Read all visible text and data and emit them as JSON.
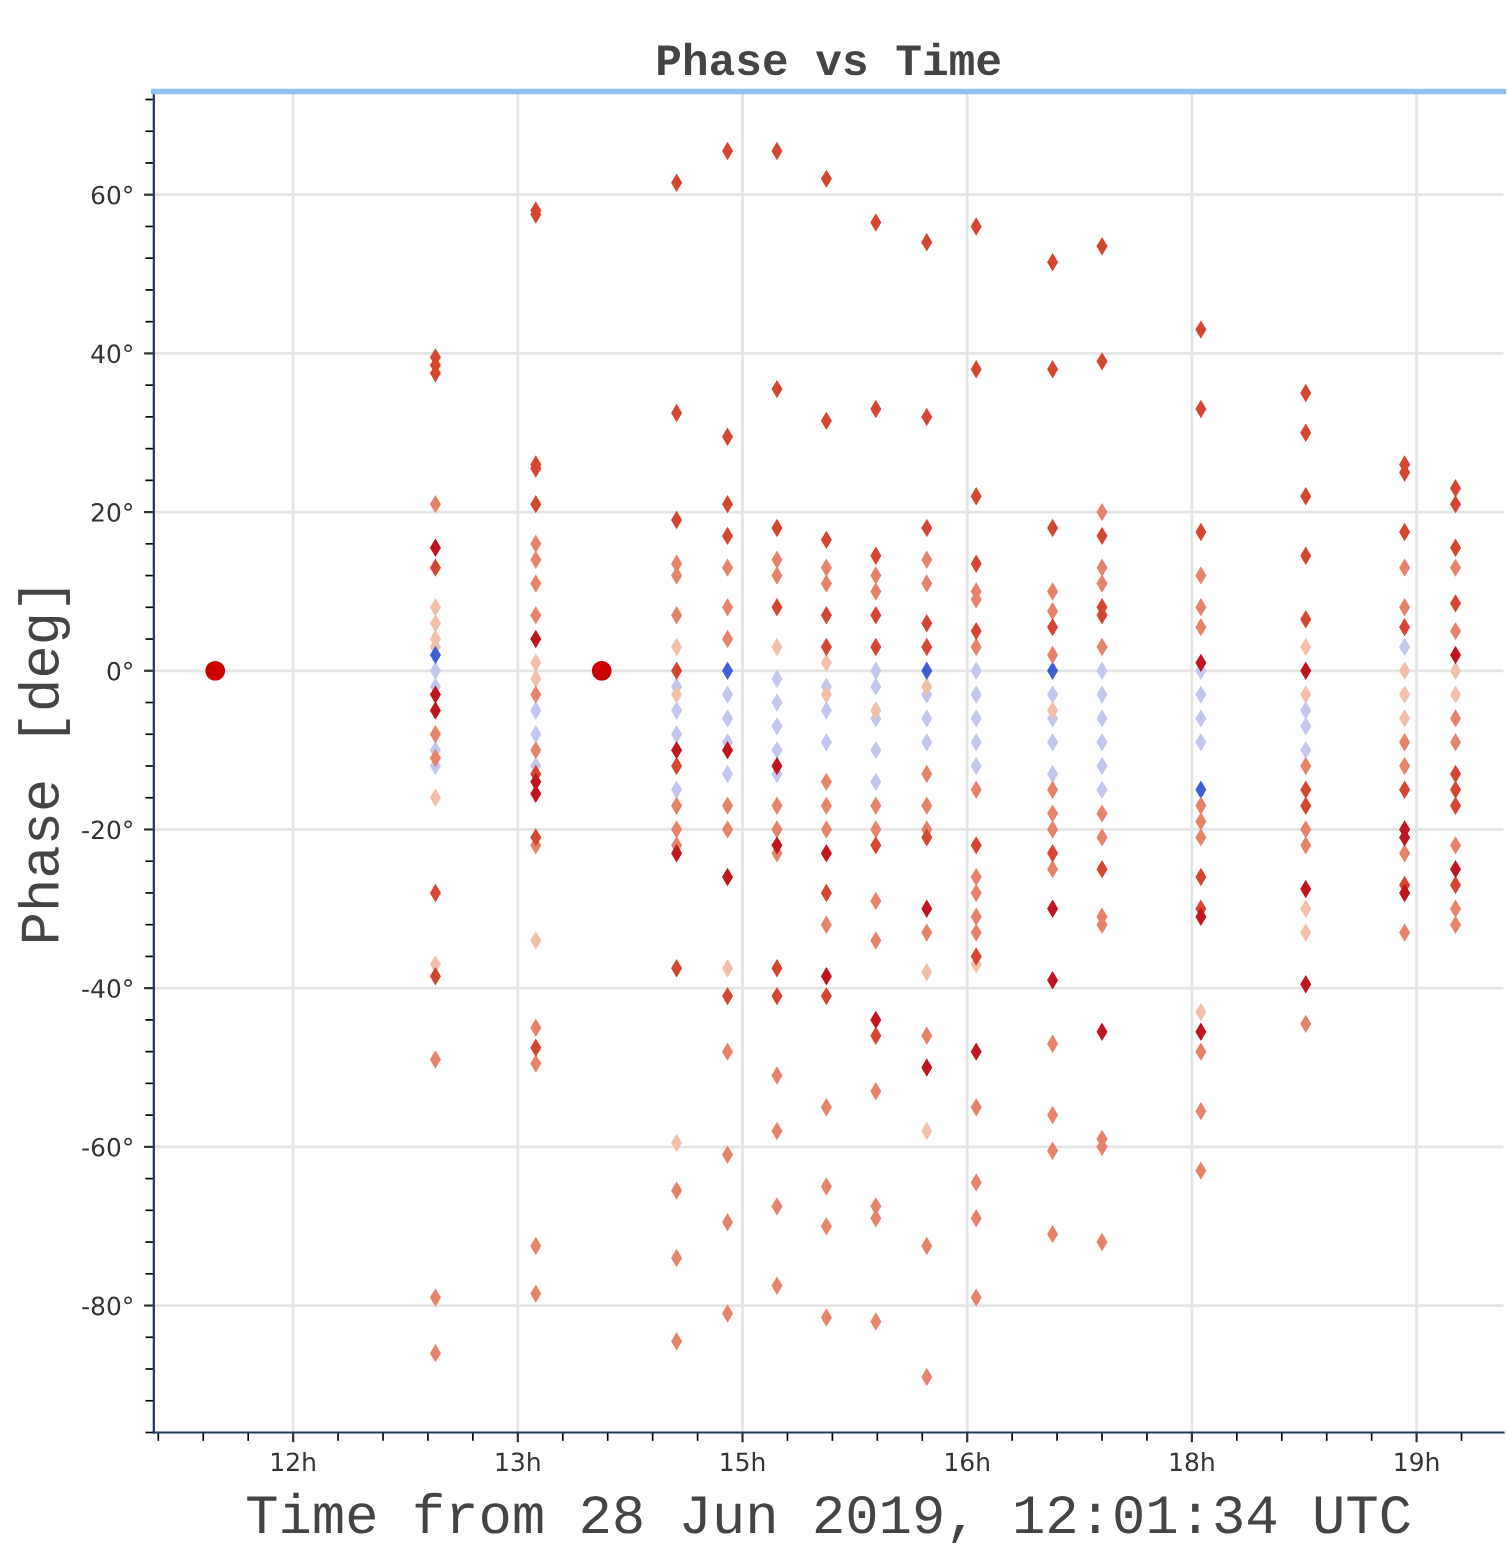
{
  "chart_data": {
    "type": "scatter",
    "title": "Phase vs Time",
    "xlabel": "Time from 28 Jun 2019, 12:01:34 UTC",
    "ylabel": "Phase [deg]",
    "xlim": [
      11.07,
      20.08
    ],
    "ylim": [
      -96,
      73
    ],
    "xticks": [
      {
        "value": 12,
        "label": "12h"
      },
      {
        "value": 13.5,
        "label": "13h"
      },
      {
        "value": 15,
        "label": "15h"
      },
      {
        "value": 16.5,
        "label": "16h"
      },
      {
        "value": 18,
        "label": "18h"
      },
      {
        "value": 19.5,
        "label": "19h"
      }
    ],
    "yticks": [
      {
        "value": -80,
        "label": "-80°"
      },
      {
        "value": -60,
        "label": "-60°"
      },
      {
        "value": -40,
        "label": "-40°"
      },
      {
        "value": -20,
        "label": "-20°"
      },
      {
        "value": 0,
        "label": "0°"
      },
      {
        "value": 20,
        "label": "20°"
      },
      {
        "value": 40,
        "label": "40°"
      },
      {
        "value": 60,
        "label": "60°"
      }
    ],
    "grid": true,
    "marker": "diamond",
    "series": [
      {
        "color": "#c3c6ee",
        "x": [
          12.95,
          12.95,
          12.95,
          12.95,
          13.62,
          13.62,
          13.62,
          14.56,
          14.56,
          14.56,
          14.56,
          14.9,
          14.9,
          14.9,
          14.9,
          15.23,
          15.23,
          15.23,
          15.23,
          15.23,
          15.56,
          15.56,
          15.56,
          15.89,
          15.89,
          15.89,
          15.89,
          15.89,
          16.23,
          16.23,
          16.23,
          16.56,
          16.56,
          16.56,
          16.56,
          16.56,
          17.07,
          17.07,
          17.07,
          17.07,
          17.4,
          17.4,
          17.4,
          17.4,
          17.4,
          17.4,
          18.06,
          18.06,
          18.06,
          18.06,
          18.76,
          18.76,
          18.76,
          19.42
        ],
        "values": [
          0,
          -2,
          -10,
          -12,
          -5,
          -8,
          -12,
          -2,
          -5,
          -8,
          -15,
          -3,
          -6,
          -9,
          -13,
          -1,
          -4,
          -7,
          -10,
          -13,
          -2,
          -5,
          -9,
          0,
          -2,
          -6,
          -10,
          -14,
          -3,
          -6,
          -9,
          0,
          -3,
          -6,
          -9,
          -12,
          -3,
          -6,
          -9,
          -13,
          0,
          -3,
          -6,
          -9,
          -12,
          -15,
          0,
          -3,
          -6,
          -9,
          -5,
          -7,
          -10,
          3
        ]
      },
      {
        "color": "#f2bfa8",
        "x": [
          12.95,
          12.95,
          12.95,
          12.95,
          12.95,
          12.95,
          13.62,
          13.62,
          13.62,
          14.56,
          14.56,
          14.56,
          14.9,
          15.23,
          15.56,
          15.56,
          15.89,
          16.23,
          16.23,
          16.23,
          16.56,
          17.07,
          18.06,
          18.76,
          18.76,
          18.76,
          18.76,
          19.42,
          19.42,
          19.42,
          19.76,
          19.76
        ],
        "values": [
          8,
          6,
          4,
          3,
          -16,
          -37,
          1,
          -1,
          -34,
          3,
          -3,
          -59.5,
          -37.5,
          3,
          1,
          -3,
          -5,
          -2,
          -38,
          -58,
          -37,
          -5,
          -43,
          3,
          -3,
          -30,
          -33,
          0,
          -3,
          -6,
          0,
          -3
        ]
      },
      {
        "color": "#3f5fd8",
        "x": [
          12.95,
          14.9,
          16.23,
          17.07,
          18.06
        ],
        "values": [
          2,
          0,
          0,
          0,
          -15
        ]
      },
      {
        "color": "#e8836b",
        "x": [
          12.95,
          12.95,
          12.95,
          12.95,
          12.95,
          12.95,
          13.62,
          13.62,
          13.62,
          13.62,
          13.62,
          13.62,
          13.62,
          13.62,
          13.62,
          13.62,
          13.62,
          14.56,
          14.56,
          14.56,
          14.56,
          14.56,
          14.56,
          14.56,
          14.56,
          14.56,
          14.9,
          14.9,
          14.9,
          14.9,
          14.9,
          14.9,
          14.9,
          14.9,
          14.9,
          15.23,
          15.23,
          15.23,
          15.23,
          15.23,
          15.23,
          15.23,
          15.23,
          15.23,
          15.56,
          15.56,
          15.56,
          15.56,
          15.56,
          15.56,
          15.56,
          15.56,
          15.56,
          15.56,
          15.89,
          15.89,
          15.89,
          15.89,
          15.89,
          15.89,
          15.89,
          15.89,
          15.89,
          15.89,
          16.23,
          16.23,
          16.23,
          16.23,
          16.23,
          16.23,
          16.23,
          16.23,
          16.23,
          16.56,
          16.56,
          16.56,
          16.56,
          16.56,
          16.56,
          16.56,
          16.56,
          16.56,
          16.56,
          16.56,
          16.56,
          17.07,
          17.07,
          17.07,
          17.07,
          17.07,
          17.07,
          17.07,
          17.07,
          17.07,
          17.07,
          17.07,
          17.4,
          17.4,
          17.4,
          17.4,
          17.4,
          17.4,
          17.4,
          17.4,
          17.4,
          17.4,
          17.4,
          18.06,
          18.06,
          18.06,
          18.06,
          18.06,
          18.06,
          18.06,
          18.06,
          18.06,
          18.76,
          18.76,
          18.76,
          18.76,
          19.42,
          19.42,
          19.42,
          19.42,
          19.42,
          19.42,
          19.76,
          19.76,
          19.76,
          19.76,
          19.76,
          19.76,
          19.76
        ],
        "values": [
          21,
          -8,
          -11,
          -49,
          -79,
          -86,
          16,
          14,
          11,
          7,
          -3,
          -10,
          -22,
          -45,
          -49.5,
          -72.5,
          -78.5,
          13.5,
          12,
          7,
          -17,
          -20,
          -22,
          -65.5,
          -74,
          -84.5,
          13,
          8,
          4,
          -17,
          -20,
          -48,
          -61,
          -69.5,
          -81,
          14,
          12,
          -17,
          -20,
          -23,
          -51,
          -58,
          -67.5,
          -77.5,
          13,
          11,
          -14,
          -17,
          -20,
          -32,
          -55,
          -65,
          -70,
          -81.5,
          12,
          10,
          -17,
          -20,
          -29,
          -34,
          -53,
          -67.5,
          -69,
          -82,
          14,
          11,
          -13,
          -17,
          -20,
          -33,
          -46,
          -72.5,
          -89,
          10,
          9,
          3,
          -15,
          -26,
          -28,
          -31,
          -33,
          -55,
          -64.5,
          -69,
          -79,
          10,
          7.5,
          2,
          -15,
          -18,
          -20,
          -25,
          -47,
          -56,
          -60.5,
          -71,
          20,
          13,
          11,
          3,
          -18,
          -21,
          -31,
          -32,
          -59,
          -60,
          -72,
          12,
          8,
          5.5,
          -17,
          -19,
          -21,
          -48,
          -55.5,
          -63,
          -12,
          -20,
          -22,
          -44.5,
          13,
          8,
          -9,
          -12,
          -23,
          -33,
          13,
          5,
          -6,
          -9,
          -22,
          -30,
          -32
        ]
      },
      {
        "color": "#d6452f",
        "x": [
          12.95,
          12.95,
          12.95,
          12.95,
          12.95,
          12.95,
          13.62,
          13.62,
          13.62,
          13.62,
          13.62,
          13.62,
          13.62,
          13.62,
          14.56,
          14.56,
          14.56,
          14.56,
          14.56,
          14.56,
          14.9,
          14.9,
          14.9,
          14.9,
          14.9,
          15.23,
          15.23,
          15.23,
          15.23,
          15.23,
          15.23,
          15.56,
          15.56,
          15.56,
          15.56,
          15.56,
          15.56,
          15.56,
          15.89,
          15.89,
          15.89,
          15.89,
          15.89,
          15.89,
          15.89,
          16.23,
          16.23,
          16.23,
          16.23,
          16.23,
          16.23,
          16.56,
          16.56,
          16.56,
          16.56,
          16.56,
          16.56,
          16.56,
          17.07,
          17.07,
          17.07,
          17.07,
          17.07,
          17.4,
          17.4,
          17.4,
          17.4,
          17.4,
          17.4,
          18.06,
          18.06,
          18.06,
          18.06,
          18.06,
          18.76,
          18.76,
          18.76,
          18.76,
          18.76,
          18.76,
          18.76,
          19.42,
          19.42,
          19.42,
          19.42,
          19.42,
          19.42,
          19.76,
          19.76,
          19.76,
          19.76,
          19.76,
          19.76,
          19.76,
          19.76
        ],
        "values": [
          39.5,
          38.5,
          37.5,
          13,
          -28,
          -38.5,
          58,
          57.5,
          26,
          25.5,
          21,
          -13,
          -21,
          -47.5,
          61.5,
          32.5,
          19,
          0,
          -12,
          -37.5,
          65.5,
          29.5,
          21,
          17,
          -41,
          65.5,
          35.5,
          18,
          8,
          -37.5,
          -41,
          62,
          31.5,
          16.5,
          7,
          3,
          -28,
          -41,
          56.5,
          33,
          14.5,
          7,
          3,
          -22,
          -46,
          54,
          32,
          18,
          6,
          3,
          -21,
          56,
          38,
          22,
          13.5,
          5,
          -22,
          -36,
          51.5,
          38,
          18,
          5.5,
          -23,
          53.5,
          39,
          17,
          8,
          7,
          -25,
          43,
          33,
          17.5,
          -26,
          -30,
          35,
          30,
          22,
          14.5,
          6.5,
          -15,
          -17,
          26,
          25,
          17.5,
          5.5,
          -15,
          -27,
          23,
          21,
          15.5,
          8.5,
          -13,
          -15,
          -17,
          -27
        ]
      },
      {
        "color": "#c0141e",
        "x": [
          12.95,
          12.95,
          12.95,
          13.62,
          13.62,
          13.62,
          14.56,
          14.56,
          14.9,
          14.9,
          15.23,
          15.23,
          15.56,
          15.56,
          15.89,
          16.23,
          16.23,
          16.56,
          17.07,
          17.07,
          17.4,
          18.06,
          18.06,
          18.06,
          18.76,
          18.76,
          18.76,
          19.42,
          19.42,
          19.42,
          19.76,
          19.76
        ],
        "values": [
          15.5,
          -3,
          -5,
          4,
          -14,
          -15.5,
          -10,
          -23,
          -10,
          -26,
          -12,
          -22,
          -23,
          -38.5,
          -44,
          -30,
          -50,
          -48,
          -30,
          -39,
          -45.5,
          1,
          -31,
          -45.5,
          0,
          -27.5,
          -39.5,
          -20,
          -21,
          -28,
          2,
          -25
        ]
      },
      {
        "color": "#cc0000",
        "marker": "circle",
        "x": [
          11.48,
          14.06
        ],
        "values": [
          0,
          0
        ]
      }
    ]
  }
}
